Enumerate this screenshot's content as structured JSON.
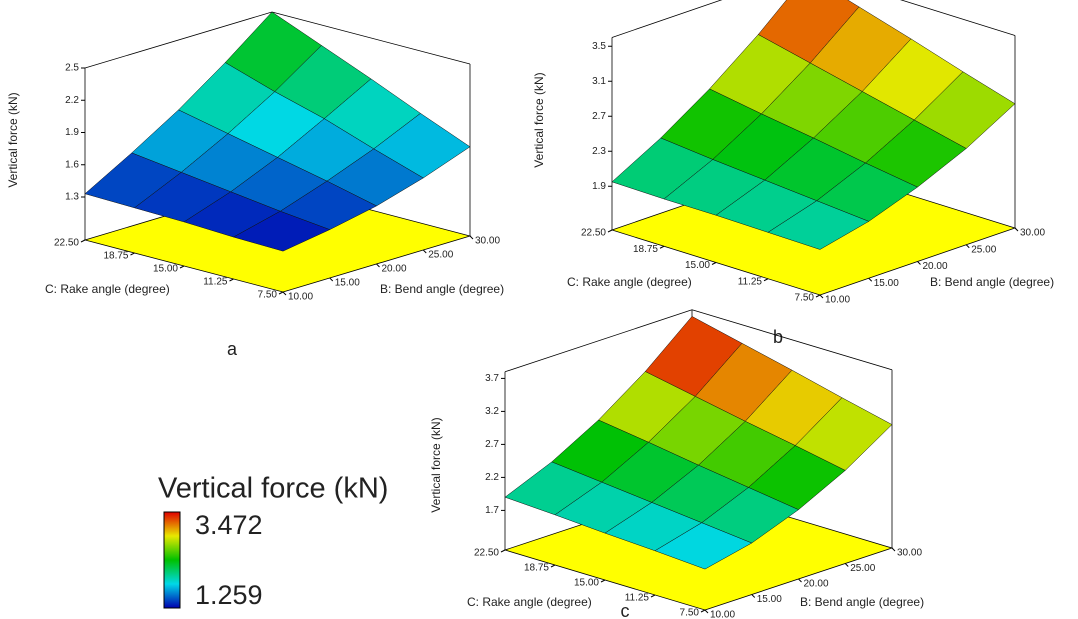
{
  "chart_data": [
    {
      "type": "surface",
      "label": "a",
      "zlabel": "Vertical force (kN)",
      "xlabel": "B: Bend angle (degree)",
      "ylabel": "C: Rake angle (degree)",
      "x": [
        10,
        15,
        20,
        25,
        30
      ],
      "y": [
        7.5,
        11.25,
        15,
        18.75,
        22.5
      ],
      "z": [
        [
          1.28,
          1.35,
          1.44,
          1.57,
          1.73
        ],
        [
          1.29,
          1.4,
          1.55,
          1.72,
          1.92
        ],
        [
          1.31,
          1.46,
          1.65,
          1.88,
          2.12
        ],
        [
          1.32,
          1.52,
          1.75,
          2.01,
          2.31
        ],
        [
          1.33,
          1.58,
          1.85,
          2.16,
          2.5
        ]
      ],
      "xlim": [
        10,
        30
      ],
      "ylim": [
        7.5,
        22.5
      ],
      "zlim": [
        0.9,
        2.5
      ],
      "xticks": [
        {
          "value": 10,
          "label": "10.00"
        },
        {
          "value": 15,
          "label": "15.00"
        },
        {
          "value": 20,
          "label": "20.00"
        },
        {
          "value": 25,
          "label": "25.00"
        },
        {
          "value": 30,
          "label": "30.00"
        }
      ],
      "yticks": [
        {
          "value": 7.5,
          "label": "7.50"
        },
        {
          "value": 11.25,
          "label": "11.25"
        },
        {
          "value": 15,
          "label": "15.00"
        },
        {
          "value": 18.75,
          "label": "18.75"
        },
        {
          "value": 22.5,
          "label": "22.50"
        }
      ],
      "zticks": [
        1.3,
        1.6,
        1.9,
        2.2,
        2.5
      ],
      "floor_color": "#ffff00"
    },
    {
      "type": "surface",
      "label": "b",
      "zlabel": "Vertical force (kN)",
      "xlabel": "B: Bend angle (degree)",
      "ylabel": "C: Rake angle (degree)",
      "x": [
        10,
        15,
        20,
        25,
        30
      ],
      "y": [
        7.5,
        11.25,
        15,
        18.75,
        22.5
      ],
      "z": [
        [
          1.92,
          2.05,
          2.25,
          2.5,
          2.82
        ],
        [
          1.93,
          2.1,
          2.34,
          2.64,
          3.0
        ],
        [
          1.94,
          2.15,
          2.44,
          2.78,
          3.19
        ],
        [
          1.94,
          2.2,
          2.53,
          2.92,
          3.37
        ],
        [
          1.95,
          2.26,
          2.63,
          3.06,
          3.55
        ]
      ],
      "xlim": [
        10,
        30
      ],
      "ylim": [
        7.5,
        22.5
      ],
      "zlim": [
        1.4,
        3.6
      ],
      "xticks": [
        {
          "value": 10,
          "label": "10.00"
        },
        {
          "value": 15,
          "label": "15.00"
        },
        {
          "value": 20,
          "label": "20.00"
        },
        {
          "value": 25,
          "label": "25.00"
        },
        {
          "value": 30,
          "label": "30.00"
        }
      ],
      "yticks": [
        {
          "value": 7.5,
          "label": "7.50"
        },
        {
          "value": 11.25,
          "label": "11.25"
        },
        {
          "value": 15,
          "label": "15.00"
        },
        {
          "value": 18.75,
          "label": "18.75"
        },
        {
          "value": 22.5,
          "label": "22.50"
        }
      ],
      "zticks": [
        1.9,
        2.3,
        2.7,
        3.1,
        3.5
      ],
      "floor_color": "#ffff00"
    },
    {
      "type": "surface",
      "label": "c",
      "zlabel": "Vertical force (kN)",
      "xlabel": "B: Bend angle (degree)",
      "ylabel": "C: Rake angle (degree)",
      "x": [
        10,
        15,
        20,
        25,
        30
      ],
      "y": [
        7.5,
        11.25,
        15,
        18.75,
        22.5
      ],
      "z": [
        [
          1.72,
          1.88,
          2.15,
          2.51,
          2.97
        ],
        [
          1.77,
          1.96,
          2.26,
          2.66,
          3.15
        ],
        [
          1.81,
          2.04,
          2.37,
          2.8,
          3.34
        ],
        [
          1.86,
          2.12,
          2.49,
          2.95,
          3.52
        ],
        [
          1.9,
          2.2,
          2.6,
          3.1,
          3.7
        ]
      ],
      "xlim": [
        10,
        30
      ],
      "ylim": [
        7.5,
        22.5
      ],
      "zlim": [
        1.1,
        3.8
      ],
      "xticks": [
        {
          "value": 10,
          "label": "10.00"
        },
        {
          "value": 15,
          "label": "15.00"
        },
        {
          "value": 20,
          "label": "20.00"
        },
        {
          "value": 25,
          "label": "25.00"
        },
        {
          "value": 30,
          "label": "30.00"
        }
      ],
      "yticks": [
        {
          "value": 7.5,
          "label": "7.50"
        },
        {
          "value": 11.25,
          "label": "11.25"
        },
        {
          "value": 15,
          "label": "15.00"
        },
        {
          "value": 18.75,
          "label": "18.75"
        },
        {
          "value": 22.5,
          "label": "22.50"
        }
      ],
      "zticks": [
        1.7,
        2.2,
        2.7,
        3.2,
        3.7
      ],
      "floor_color": "#ffff00"
    }
  ],
  "colorbar": {
    "title": "Vertical force (kN)",
    "max": 3.472,
    "min": 1.259,
    "max_color": "#ff2020",
    "min_color": "#2020ff",
    "colors": [
      "#0000b0",
      "#00d8e8",
      "#00c000",
      "#e8e800",
      "#e00000"
    ]
  }
}
